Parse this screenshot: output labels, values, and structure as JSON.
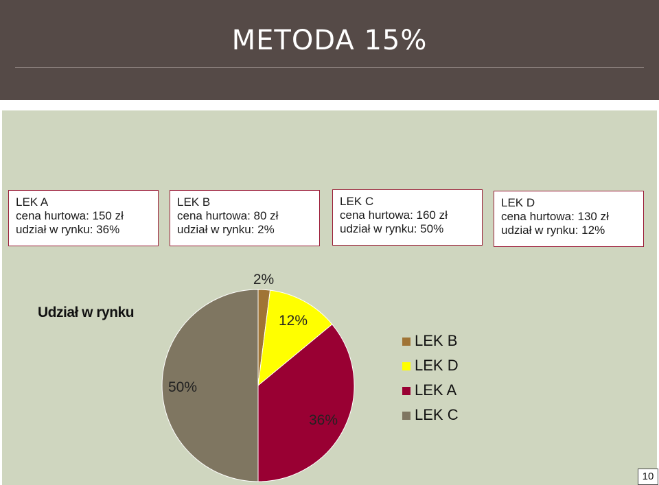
{
  "title": "METODA 15%",
  "drugs": [
    {
      "name": "LEK A",
      "price": "cena hurtowa: 150 zł",
      "share": "udział w rynku: 36%"
    },
    {
      "name": "LEK B",
      "price": "cena hurtowa: 80 zł",
      "share": "udział w rynku: 2%"
    },
    {
      "name": "LEK C",
      "price": "cena hurtowa: 160 zł",
      "share": "udział w rynku: 50%"
    },
    {
      "name": "LEK D",
      "price": "cena hurtowa: 130 zł",
      "share": "udział w rynku: 12%"
    }
  ],
  "chart_data": {
    "type": "pie",
    "title": "Udział w rynku",
    "categories": [
      "LEK B",
      "LEK D",
      "LEK A",
      "LEK C"
    ],
    "values": [
      2,
      12,
      36,
      50
    ],
    "data_labels": [
      "2%",
      "12%",
      "36%",
      "50%"
    ],
    "colors": [
      "#a07435",
      "#ffff00",
      "#990033",
      "#7f7661"
    ],
    "legend_position": "right"
  },
  "page_number": "10"
}
